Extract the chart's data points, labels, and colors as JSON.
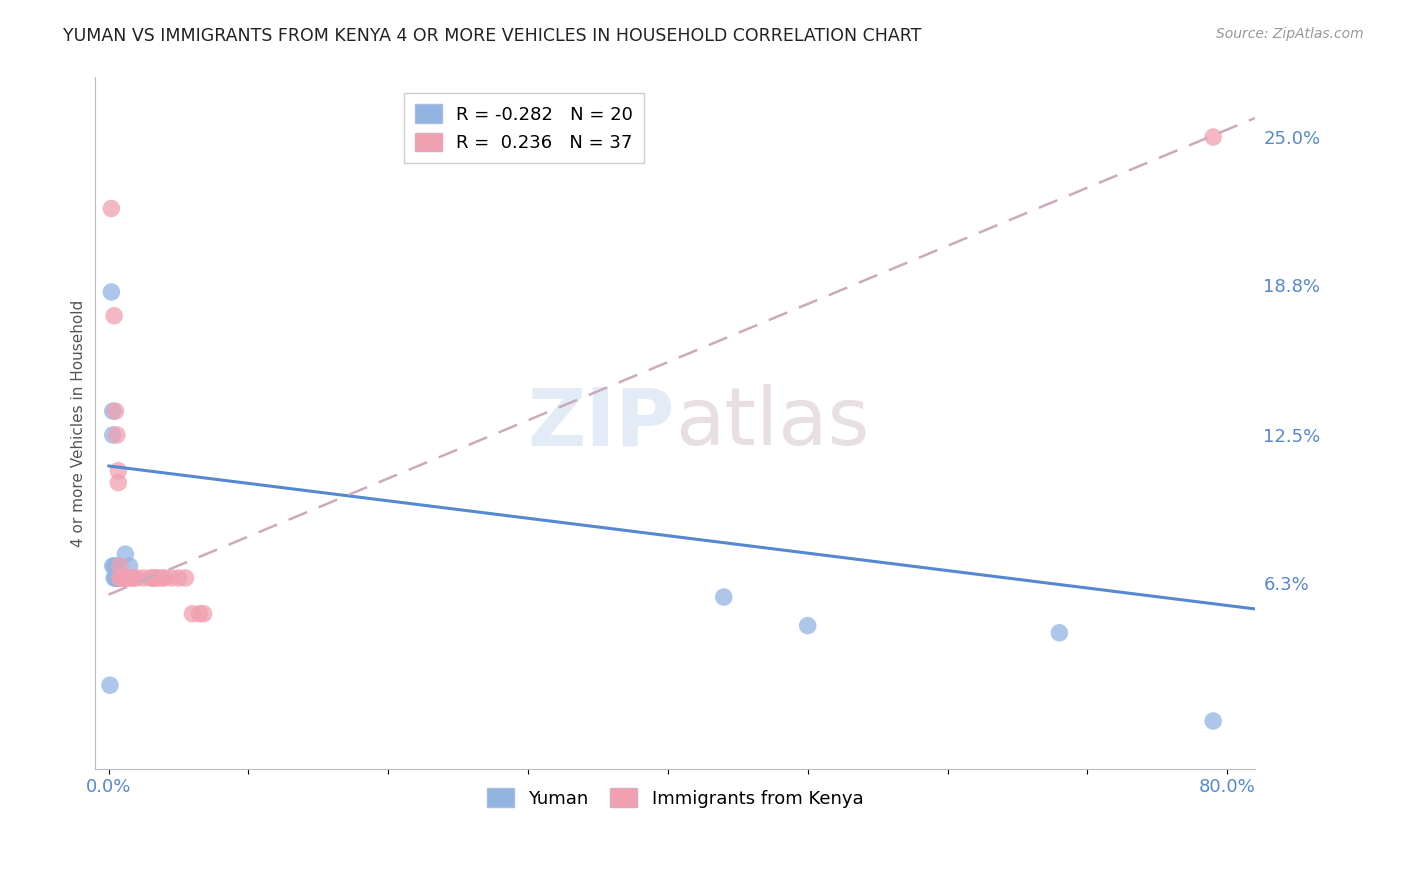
{
  "title": "YUMAN VS IMMIGRANTS FROM KENYA 4 OR MORE VEHICLES IN HOUSEHOLD CORRELATION CHART",
  "source": "Source: ZipAtlas.com",
  "ylabel": "4 or more Vehicles in Household",
  "ytick_labels": [
    "25.0%",
    "18.8%",
    "12.5%",
    "6.3%"
  ],
  "ytick_values": [
    0.25,
    0.188,
    0.125,
    0.063
  ],
  "legend_blue_r": "R = -0.282",
  "legend_blue_n": "N = 20",
  "legend_pink_r": "R =  0.236",
  "legend_pink_n": "N = 37",
  "legend_label1": "Yuman",
  "legend_label2": "Immigrants from Kenya",
  "yuman_x": [
    0.001,
    0.002,
    0.003,
    0.003,
    0.003,
    0.004,
    0.004,
    0.005,
    0.005,
    0.006,
    0.006,
    0.007,
    0.007,
    0.008,
    0.012,
    0.015,
    0.44,
    0.5,
    0.68,
    0.79
  ],
  "yuman_y": [
    0.02,
    0.185,
    0.135,
    0.125,
    0.07,
    0.07,
    0.065,
    0.065,
    0.065,
    0.07,
    0.065,
    0.065,
    0.065,
    0.065,
    0.075,
    0.07,
    0.057,
    0.045,
    0.042,
    0.005
  ],
  "kenya_x": [
    0.002,
    0.004,
    0.005,
    0.006,
    0.007,
    0.007,
    0.008,
    0.008,
    0.009,
    0.009,
    0.009,
    0.01,
    0.01,
    0.01,
    0.01,
    0.01,
    0.01,
    0.012,
    0.013,
    0.015,
    0.016,
    0.018,
    0.02,
    0.025,
    0.03,
    0.032,
    0.033,
    0.035,
    0.038,
    0.04,
    0.045,
    0.05,
    0.055,
    0.06,
    0.065,
    0.068,
    0.79
  ],
  "kenya_y": [
    0.22,
    0.175,
    0.135,
    0.125,
    0.11,
    0.105,
    0.07,
    0.065,
    0.065,
    0.065,
    0.065,
    0.065,
    0.065,
    0.065,
    0.065,
    0.065,
    0.065,
    0.065,
    0.065,
    0.065,
    0.065,
    0.065,
    0.065,
    0.065,
    0.065,
    0.065,
    0.065,
    0.065,
    0.065,
    0.065,
    0.065,
    0.065,
    0.065,
    0.05,
    0.05,
    0.05,
    0.25
  ],
  "blue_color": "#92B4E3",
  "pink_color": "#F0A0B0",
  "background": "#FFFFFF",
  "grid_color": "#DDDDDD",
  "xlim": [
    -0.01,
    0.82
  ],
  "ylim": [
    -0.015,
    0.275
  ],
  "blue_line_x0": 0.0,
  "blue_line_x1": 0.82,
  "blue_line_y0": 0.112,
  "blue_line_y1": 0.052,
  "pink_line_x0": 0.0,
  "pink_line_x1": 0.82,
  "pink_line_y0": 0.058,
  "pink_line_y1": 0.258
}
